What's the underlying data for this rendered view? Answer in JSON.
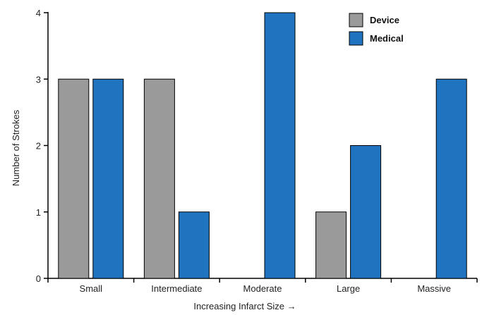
{
  "chart_data": {
    "type": "bar",
    "title": "",
    "xlabel": "Increasing Infarct Size →",
    "ylabel": "Number of Strokes",
    "categories": [
      "Small",
      "Intermediate",
      "Moderate",
      "Large",
      "Massive"
    ],
    "series": [
      {
        "name": "Device",
        "values": [
          3,
          3,
          0,
          1,
          0
        ],
        "color": "#9a9a9a"
      },
      {
        "name": "Medical",
        "values": [
          3,
          1,
          4,
          2,
          3
        ],
        "color": "#1f73bf"
      }
    ],
    "yticks": [
      "0",
      "1",
      "2",
      "3",
      "4"
    ],
    "ylim": [
      0,
      4
    ],
    "grid": false,
    "legend": "top-right"
  }
}
